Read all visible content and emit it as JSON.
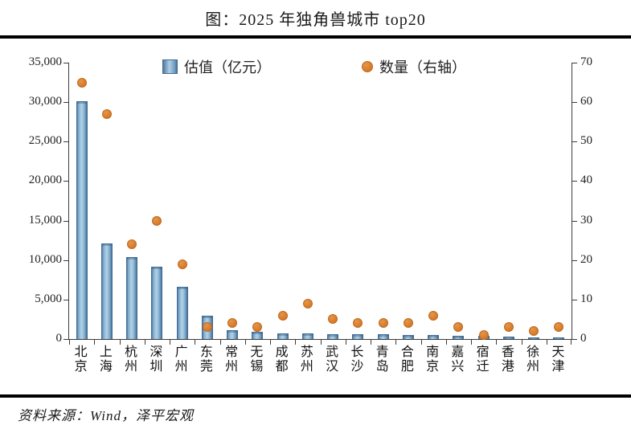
{
  "page": {
    "title": "图：2025 年独角兽城市 top20",
    "source": "资料来源：Wind，泽平宏观"
  },
  "legend": {
    "bar_label": "估值（亿元）",
    "dot_label": "数量（右轴）"
  },
  "colors": {
    "bar_blue": "#6f9cc0",
    "bar_blue_light": "#aecfe6",
    "bar_blue_dark": "#3f6d96",
    "dot_orange": "#d57a28",
    "axis": "#3c3c3c",
    "rule": "#000000",
    "background": "#ffffff"
  },
  "chart_data": {
    "type": "bar",
    "title": "图：2025 年独角兽城市 top20",
    "categories": [
      "北京",
      "上海",
      "杭州",
      "深圳",
      "广州",
      "东莞",
      "常州",
      "无锡",
      "成都",
      "苏州",
      "武汉",
      "长沙",
      "青岛",
      "合肥",
      "南京",
      "嘉兴",
      "宿迁",
      "香港",
      "徐州",
      "天津"
    ],
    "series": [
      {
        "name": "估值（亿元）",
        "type": "bar",
        "axis": "left",
        "values": [
          30100,
          12100,
          10350,
          9200,
          6600,
          3000,
          1120,
          890,
          760,
          720,
          650,
          600,
          580,
          550,
          480,
          380,
          360,
          340,
          220,
          200
        ]
      },
      {
        "name": "数量（右轴）",
        "type": "scatter",
        "axis": "right",
        "values": [
          65,
          57,
          24,
          30,
          19,
          3,
          4,
          3,
          6,
          9,
          5,
          4,
          4,
          4,
          6,
          3,
          1,
          3,
          2,
          3
        ]
      }
    ],
    "left_axis": {
      "label": "估值（亿元）",
      "min": 0,
      "max": 35000,
      "step": 5000,
      "tick_labels": [
        "0",
        "5,000",
        "10,000",
        "15,000",
        "20,000",
        "25,000",
        "30,000",
        "35,000"
      ]
    },
    "right_axis": {
      "label": "数量（右轴）",
      "min": 0,
      "max": 70,
      "step": 10,
      "tick_labels": [
        "0",
        "10",
        "20",
        "30",
        "40",
        "50",
        "60",
        "70"
      ]
    },
    "grid": false,
    "legend_position": "top-inside",
    "source": "资料来源：Wind，泽平宏观"
  }
}
